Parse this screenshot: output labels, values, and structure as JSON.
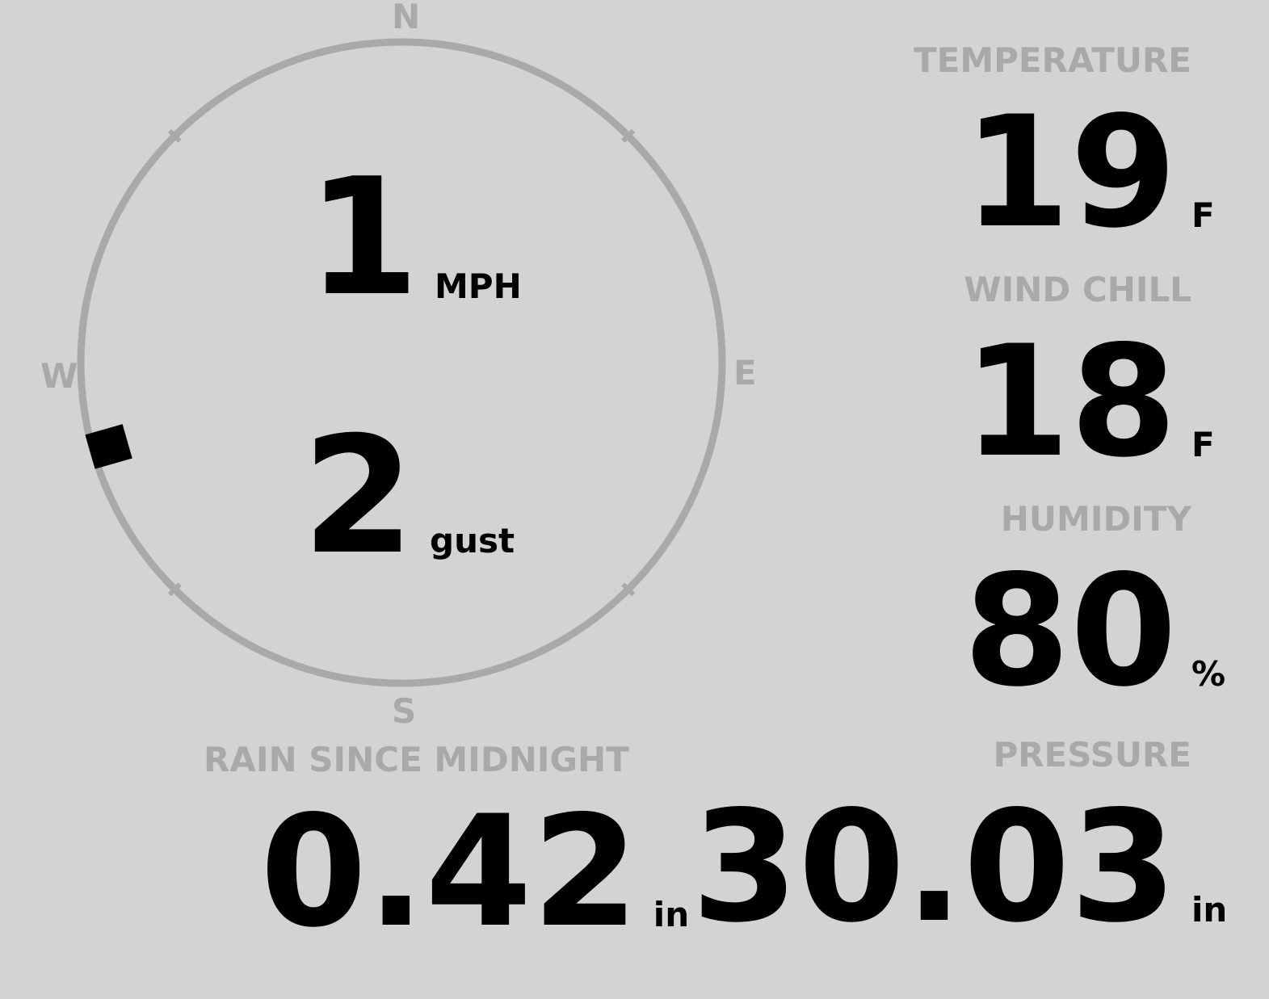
{
  "compass": {
    "north": "N",
    "south": "S",
    "east": "E",
    "west": "W",
    "wind_direction_degrees": 254,
    "ring_color": "#a9a9a9",
    "marker_color": "#000000"
  },
  "wind": {
    "speed": "1",
    "speed_unit": "MPH",
    "gust": "2",
    "gust_unit": "gust"
  },
  "temperature": {
    "label": "TEMPERATURE",
    "value": "19",
    "unit": "F"
  },
  "wind_chill": {
    "label": "WIND CHILL",
    "value": "18",
    "unit": "F"
  },
  "humidity": {
    "label": "HUMIDITY",
    "value": "80",
    "unit": "%"
  },
  "rain": {
    "label": "RAIN SINCE MIDNIGHT",
    "value": "0.42",
    "unit": "in"
  },
  "pressure": {
    "label": "PRESSURE",
    "value": "30.03",
    "unit": "in"
  },
  "colors": {
    "background": "#d3d3d3",
    "label": "#a9a9a9",
    "value": "#000000"
  }
}
